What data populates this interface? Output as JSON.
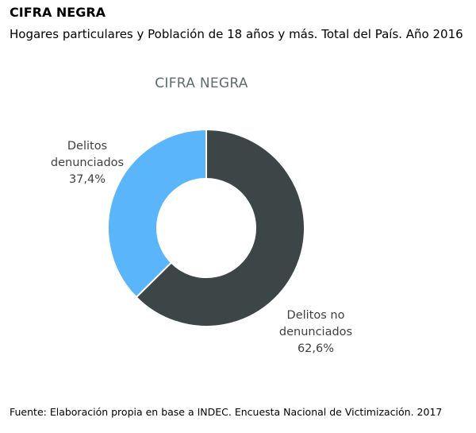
{
  "header": {
    "title": "CIFRA NEGRA",
    "subtitle": "Hogares particulares y Población de 18 años y más. Total del País. Año 2016"
  },
  "chart_data": {
    "type": "pie",
    "title": "CIFRA NEGRA",
    "donut": true,
    "start_angle_deg": 0,
    "slices": [
      {
        "label_lines": [
          "Delitos no",
          "denunciados",
          "62,6%"
        ],
        "value": 62.6,
        "color": "#3d4647"
      },
      {
        "label_lines": [
          "Delitos",
          "denunciados",
          "37,4%"
        ],
        "value": 37.4,
        "color": "#5bb5fa"
      }
    ]
  },
  "footer": {
    "source": "Fuente: Elaboración propia en base a INDEC. Encuesta Nacional de Victimización. 2017"
  }
}
